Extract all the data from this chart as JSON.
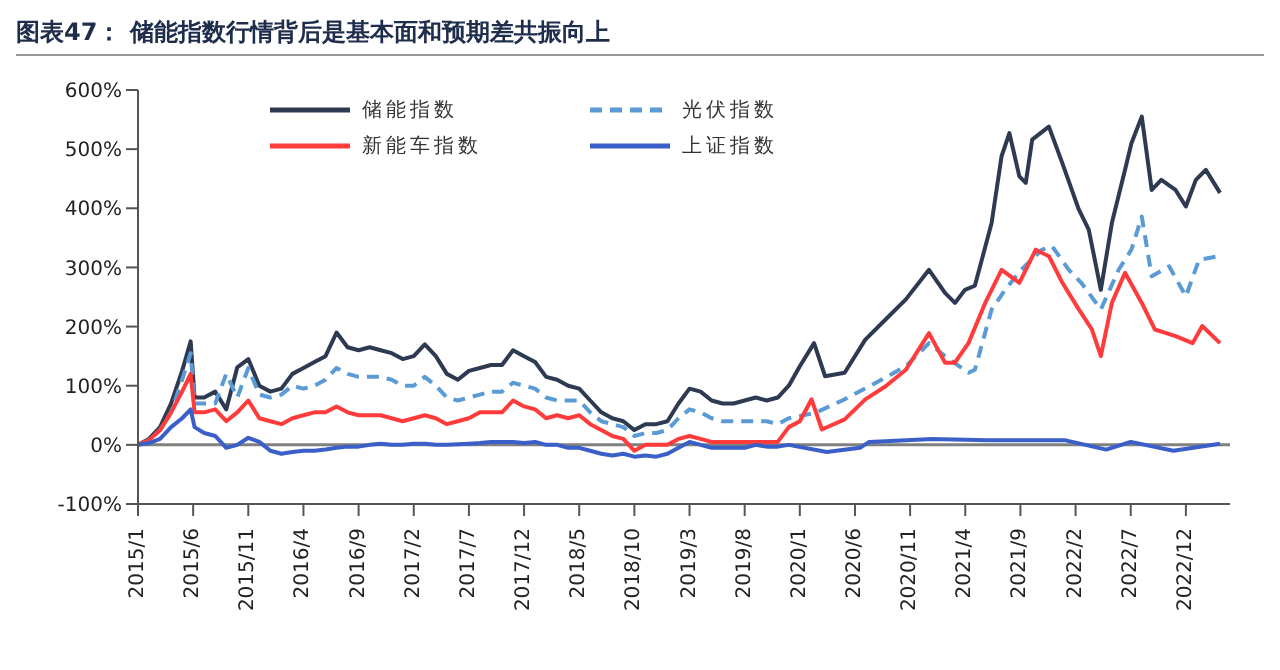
{
  "chart_data": {
    "type": "line",
    "title": "图表47：  储能指数行情背后是基本面和预期差共振向上",
    "series": [
      {
        "name": "储能指数",
        "color": "#2e3a52",
        "line_style": "solid",
        "x": [
          "2015-01",
          "2015-02",
          "2015-03",
          "2015-04",
          "2015-05",
          "2015-05-25",
          "2015-06-05",
          "2015-07",
          "2015-08",
          "2015-09",
          "2015-10",
          "2015-11",
          "2015-12",
          "2016-01",
          "2016-02",
          "2016-03",
          "2016-04",
          "2016-05",
          "2016-06",
          "2016-07",
          "2016-08",
          "2016-09",
          "2016-10",
          "2016-11",
          "2016-12",
          "2017-01",
          "2017-02",
          "2017-03",
          "2017-04",
          "2017-05",
          "2017-06",
          "2017-07",
          "2017-08",
          "2017-09",
          "2017-10",
          "2017-11",
          "2017-12",
          "2018-01",
          "2018-02",
          "2018-03",
          "2018-04",
          "2018-05",
          "2018-06",
          "2018-07",
          "2018-08",
          "2018-09",
          "2018-10",
          "2018-11",
          "2018-12",
          "2019-01",
          "2019-02",
          "2019-03",
          "2019-04",
          "2019-05",
          "2019-06",
          "2019-07",
          "2019-08",
          "2019-09",
          "2019-10",
          "2019-11",
          "2019-12",
          "2020-01-01",
          "2020-02-10",
          "2020-03-10",
          "2020-05-03",
          "2020-06-30",
          "2020-08-25",
          "2020-10-20",
          "2020-12-23",
          "2021-02-06",
          "2021-03-03",
          "2021-03-31",
          "2021-04-28",
          "2021-06-13",
          "2021-07-10",
          "2021-08-01",
          "2021-08-29",
          "2021-09-16",
          "2021-10-03",
          "2021-11-19",
          "2021-12-26",
          "2022-02-10",
          "2022-03-07",
          "2022-04-10",
          "2022-05-10",
          "2022-06-16",
          "2022-07-03",
          "2022-08-01",
          "2022-08-29",
          "2022-09-25",
          "2022-11-03",
          "2022-12-01",
          "2022-12-29",
          "2023-01-26",
          "2023-03-04"
        ],
        "values": [
          0,
          10,
          30,
          70,
          125,
          175,
          80,
          80,
          90,
          60,
          131,
          145,
          100,
          90,
          95,
          120,
          130,
          140,
          150,
          190,
          165,
          160,
          165,
          160,
          155,
          145,
          150,
          170,
          150,
          120,
          110,
          125,
          130,
          135,
          135,
          160,
          150,
          140,
          115,
          110,
          100,
          95,
          75,
          55,
          45,
          40,
          25,
          35,
          35,
          40,
          70,
          95,
          90,
          75,
          70,
          70,
          75,
          80,
          75,
          80,
          100,
          133,
          172,
          116,
          122,
          178,
          212,
          246,
          296,
          257,
          240,
          262,
          269,
          375,
          488,
          527,
          454,
          443,
          516,
          538,
          476,
          398,
          364,
          262,
          375,
          465,
          510,
          555,
          431,
          448,
          431,
          403,
          448,
          465,
          426
        ]
      },
      {
        "name": "光伏指数",
        "color": "#5b9bd5",
        "line_style": "dashed",
        "x": [
          "2015-01",
          "2015-02",
          "2015-03",
          "2015-04",
          "2015-05",
          "2015-05-25",
          "2015-06-05",
          "2015-07",
          "2015-08",
          "2015-09",
          "2015-10",
          "2015-11",
          "2015-12",
          "2016-01",
          "2016-02",
          "2016-03",
          "2016-04",
          "2016-05",
          "2016-06",
          "2016-07",
          "2016-08",
          "2016-09",
          "2016-10",
          "2016-11",
          "2016-12",
          "2017-01",
          "2017-02",
          "2017-03",
          "2017-04",
          "2017-05",
          "2017-06",
          "2017-07",
          "2017-08",
          "2017-09",
          "2017-10",
          "2017-11",
          "2017-12",
          "2018-01",
          "2018-02",
          "2018-03",
          "2018-04",
          "2018-05",
          "2018-06",
          "2018-07",
          "2018-08",
          "2018-09",
          "2018-10",
          "2018-11",
          "2018-12",
          "2019-01",
          "2019-02",
          "2019-03",
          "2019-04",
          "2019-05",
          "2019-06",
          "2019-07",
          "2019-08",
          "2019-09",
          "2019-10",
          "2019-11",
          "2019-12",
          "2020-02-13",
          "2020-05-03",
          "2020-07-29",
          "2020-10-20",
          "2020-12-23",
          "2021-02-06",
          "2021-04-10",
          "2021-04-28",
          "2021-06-13",
          "2021-07-20",
          "2021-09-03",
          "2021-10-31",
          "2021-11-28",
          "2022-01-13",
          "2022-02-17",
          "2022-04-10",
          "2022-05-29",
          "2022-07-03",
          "2022-08-01",
          "2022-08-29",
          "2022-10-16",
          "2022-12-01",
          "2023-01-07",
          "2023-03-01"
        ],
        "values": [
          0,
          8,
          25,
          55,
          110,
          155,
          70,
          70,
          70,
          120,
          80,
          130,
          85,
          80,
          85,
          100,
          95,
          100,
          110,
          130,
          120,
          115,
          115,
          115,
          110,
          100,
          100,
          115,
          100,
          80,
          75,
          80,
          85,
          90,
          90,
          105,
          100,
          95,
          80,
          75,
          75,
          75,
          55,
          40,
          35,
          30,
          15,
          20,
          20,
          25,
          45,
          60,
          55,
          45,
          40,
          40,
          40,
          40,
          40,
          35,
          45,
          54,
          77,
          105,
          133,
          172,
          150,
          122,
          127,
          229,
          262,
          296,
          330,
          336,
          296,
          274,
          229,
          296,
          330,
          386,
          285,
          302,
          251,
          313,
          319
        ]
      },
      {
        "name": "新能车指数",
        "color": "#ff3b3b",
        "line_style": "solid",
        "x": [
          "2015-01",
          "2015-02",
          "2015-03",
          "2015-04",
          "2015-05",
          "2015-05-25",
          "2015-06-05",
          "2015-07",
          "2015-08",
          "2015-09",
          "2015-10",
          "2015-11",
          "2015-12",
          "2016-01",
          "2016-02",
          "2016-03",
          "2016-04",
          "2016-05",
          "2016-06",
          "2016-07",
          "2016-08",
          "2016-09",
          "2016-10",
          "2016-11",
          "2016-12",
          "2017-01",
          "2017-02",
          "2017-03",
          "2017-04",
          "2017-05",
          "2017-06",
          "2017-07",
          "2017-08",
          "2017-09",
          "2017-10",
          "2017-11",
          "2017-12",
          "2018-01",
          "2018-02",
          "2018-03",
          "2018-04",
          "2018-05",
          "2018-06",
          "2018-07",
          "2018-08",
          "2018-09",
          "2018-10",
          "2018-11",
          "2018-12",
          "2019-01",
          "2019-02",
          "2019-03",
          "2019-04",
          "2019-05",
          "2019-06",
          "2019-07",
          "2019-08",
          "2019-09",
          "2019-10",
          "2019-11",
          "2019-12",
          "2020-01-01",
          "2020-02-03",
          "2020-03-01",
          "2020-05-03",
          "2020-06-30",
          "2020-08-25",
          "2020-10-20",
          "2020-12-23",
          "2021-02-06",
          "2021-03-03",
          "2021-04-10",
          "2021-05-26",
          "2021-07-10",
          "2021-08-29",
          "2021-10-13",
          "2021-11-19",
          "2021-12-26",
          "2022-02-10",
          "2022-03-16",
          "2022-04-10",
          "2022-05-10",
          "2022-06-16",
          "2022-08-01",
          "2022-09-07",
          "2022-11-03",
          "2022-12-20",
          "2023-01-16",
          "2023-03-04"
        ],
        "values": [
          0,
          8,
          25,
          55,
          90,
          120,
          55,
          55,
          60,
          40,
          55,
          75,
          45,
          40,
          35,
          45,
          50,
          55,
          55,
          65,
          55,
          50,
          50,
          50,
          45,
          40,
          45,
          50,
          45,
          35,
          40,
          45,
          55,
          55,
          55,
          75,
          65,
          60,
          45,
          50,
          45,
          50,
          35,
          25,
          15,
          10,
          -10,
          0,
          0,
          0,
          10,
          15,
          10,
          5,
          5,
          5,
          5,
          5,
          5,
          5,
          30,
          40,
          77,
          26,
          43,
          77,
          99,
          127,
          189,
          139,
          139,
          172,
          240,
          296,
          274,
          330,
          319,
          274,
          229,
          195,
          150,
          240,
          291,
          240,
          195,
          184,
          172,
          201,
          172
        ]
      },
      {
        "name": "上证指数",
        "color": "#3a5fc8",
        "line_style": "solid",
        "x": [
          "2015-01",
          "2015-02",
          "2015-03",
          "2015-04",
          "2015-05",
          "2015-05-25",
          "2015-06-05",
          "2015-07",
          "2015-08",
          "2015-09",
          "2015-10",
          "2015-11",
          "2015-12",
          "2016-01",
          "2016-02",
          "2016-03",
          "2016-04",
          "2016-05",
          "2016-06",
          "2016-07",
          "2016-08",
          "2016-09",
          "2016-10",
          "2016-11",
          "2016-12",
          "2017-01",
          "2017-02",
          "2017-03",
          "2017-04",
          "2017-05",
          "2017-06",
          "2017-07",
          "2017-08",
          "2017-09",
          "2017-10",
          "2017-11",
          "2017-12",
          "2018-01",
          "2018-02",
          "2018-03",
          "2018-04",
          "2018-05",
          "2018-06",
          "2018-07",
          "2018-08",
          "2018-09",
          "2018-10",
          "2018-11",
          "2018-12",
          "2019-01",
          "2019-02",
          "2019-03",
          "2019-04",
          "2019-05",
          "2019-06",
          "2019-07",
          "2019-08",
          "2019-09",
          "2019-10",
          "2019-11",
          "2019-12",
          "2020-03-15",
          "2020-06-15",
          "2020-07-10",
          "2021-01-01",
          "2021-06-01",
          "2022-01-01",
          "2022-04-25",
          "2022-07-01",
          "2022-10-28",
          "2023-03-04"
        ],
        "values": [
          0,
          3,
          10,
          30,
          45,
          60,
          30,
          20,
          15,
          -5,
          0,
          12,
          5,
          -10,
          -15,
          -12,
          -10,
          -10,
          -8,
          -5,
          -3,
          -3,
          0,
          2,
          0,
          0,
          2,
          2,
          0,
          0,
          1,
          2,
          3,
          5,
          5,
          5,
          3,
          5,
          0,
          0,
          -5,
          -5,
          -10,
          -15,
          -18,
          -15,
          -20,
          -18,
          -20,
          -15,
          -5,
          5,
          0,
          -5,
          -5,
          -5,
          -5,
          0,
          -3,
          -3,
          0,
          -12,
          -5,
          5,
          10,
          8,
          8,
          -8,
          5,
          -10,
          2
        ]
      }
    ],
    "xlim": [
      "2015-01",
      "2023-04"
    ],
    "xticks": [
      {
        "value": "2015-01",
        "label": "2015/1"
      },
      {
        "value": "2015-06",
        "label": "2015/6"
      },
      {
        "value": "2015-11",
        "label": "2015/11"
      },
      {
        "value": "2016-04",
        "label": "2016/4"
      },
      {
        "value": "2016-09",
        "label": "2016/9"
      },
      {
        "value": "2017-02",
        "label": "2017/2"
      },
      {
        "value": "2017-07",
        "label": "2017/7"
      },
      {
        "value": "2017-12",
        "label": "2017/12"
      },
      {
        "value": "2018-05",
        "label": "2018/5"
      },
      {
        "value": "2018-10",
        "label": "2018/10"
      },
      {
        "value": "2019-03",
        "label": "2019/3"
      },
      {
        "value": "2019-08",
        "label": "2019/8"
      },
      {
        "value": "2020-01",
        "label": "2020/1"
      },
      {
        "value": "2020-06",
        "label": "2020/6"
      },
      {
        "value": "2020-11",
        "label": "2020/11"
      },
      {
        "value": "2021-04",
        "label": "2021/4"
      },
      {
        "value": "2021-09",
        "label": "2021/9"
      },
      {
        "value": "2022-02",
        "label": "2022/2"
      },
      {
        "value": "2022-07",
        "label": "2022/7"
      },
      {
        "value": "2022-12",
        "label": "2022/12"
      }
    ],
    "ylim": [
      -100,
      600
    ],
    "yticks": [
      {
        "value": -100,
        "label": "-100%"
      },
      {
        "value": 0,
        "label": "0%"
      },
      {
        "value": 100,
        "label": "100%"
      },
      {
        "value": 200,
        "label": "200%"
      },
      {
        "value": 300,
        "label": "300%"
      },
      {
        "value": 400,
        "label": "400%"
      },
      {
        "value": 500,
        "label": "500%"
      },
      {
        "value": 600,
        "label": "600%"
      }
    ],
    "ref_lines": [
      {
        "axis": "y",
        "value": 0,
        "color": "#808080"
      }
    ],
    "legend": "top",
    "grid": false,
    "marker": "none"
  }
}
